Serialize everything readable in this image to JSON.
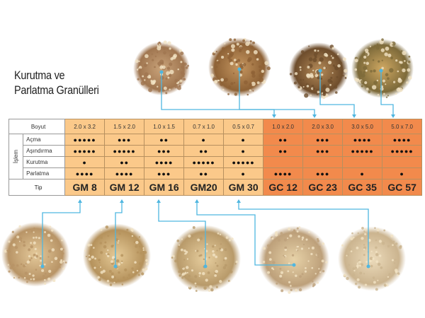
{
  "title_line1": "Kurutma ve",
  "title_line2": "Parlatma Granülleri",
  "table": {
    "size_label": "Boyut",
    "group_label": "İşlem",
    "type_label": "Tip",
    "columns": [
      {
        "type": "GM 8",
        "size": "2.0 x 3.2",
        "family": "gm"
      },
      {
        "type": "GM 12",
        "size": "1.5 x 2.0",
        "family": "gm"
      },
      {
        "type": "GM 16",
        "size": "1.0 x 1.5",
        "family": "gm"
      },
      {
        "type": "GM20",
        "size": "0.7 x 1.0",
        "family": "gm"
      },
      {
        "type": "GM 30",
        "size": "0.5 x 0.7",
        "family": "gm"
      },
      {
        "type": "GC  12",
        "size": "1.0 x 2.0",
        "family": "gc"
      },
      {
        "type": "GC 23",
        "size": "2.0 x 3.0",
        "family": "gc"
      },
      {
        "type": "GC 35",
        "size": "3.0 x 5.0",
        "family": "gc"
      },
      {
        "type": "GC 57",
        "size": "5.0 x 7.0",
        "family": "gc"
      }
    ],
    "processes": [
      {
        "label": "Açma",
        "ratings": [
          5,
          3,
          2,
          1,
          1,
          2,
          3,
          4,
          4
        ]
      },
      {
        "label": "Aşındırma",
        "ratings": [
          5,
          5,
          3,
          2,
          1,
          2,
          3,
          5,
          5
        ]
      },
      {
        "label": "Kurutma",
        "ratings": [
          1,
          2,
          4,
          5,
          5,
          0,
          0,
          0,
          0
        ]
      },
      {
        "label": "Parlatma",
        "ratings": [
          4,
          4,
          3,
          2,
          1,
          4,
          3,
          1,
          1
        ]
      }
    ]
  },
  "colors": {
    "gm": "#fbc98a",
    "gc": "#f28a4c",
    "connector": "#4fb6e0"
  }
}
